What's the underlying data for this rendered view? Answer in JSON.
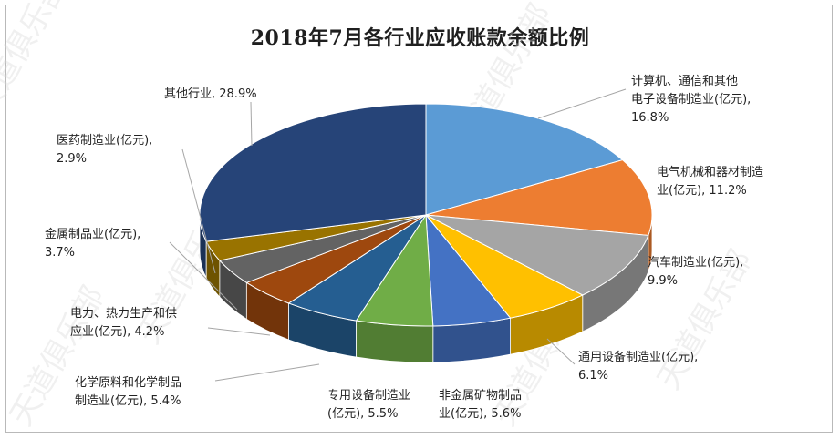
{
  "chart_data": {
    "type": "pie",
    "title": "2018年7月各行业应收账款余额比例",
    "slices": [
      {
        "label": "计算机、通信和其他电子设备制造业(亿元)",
        "value": 16.8,
        "color": "#5b9bd5",
        "label_lines": [
          "计算机、通信和其他",
          "电子设备制造业(亿元),",
          "16.8%"
        ]
      },
      {
        "label": "电气机械和器材制造业(亿元)",
        "value": 11.2,
        "color": "#ed7d31",
        "label_lines": [
          "电气机械和器材制造",
          "业(亿元), 11.2%"
        ]
      },
      {
        "label": "汽车制造业(亿元)",
        "value": 9.9,
        "color": "#a5a5a5",
        "label_lines": [
          "汽车制造业(亿元),",
          "9.9%"
        ]
      },
      {
        "label": "通用设备制造业(亿元)",
        "value": 6.1,
        "color": "#ffc000",
        "label_lines": [
          "通用设备制造业(亿元),",
          "6.1%"
        ]
      },
      {
        "label": "非金属矿物制品业(亿元)",
        "value": 5.6,
        "color": "#4472c4",
        "label_lines": [
          "非金属矿物制品",
          "业(亿元), 5.6%"
        ]
      },
      {
        "label": "专用设备制造业(亿元)",
        "value": 5.5,
        "color": "#70ad47",
        "label_lines": [
          "专用设备制造业",
          "(亿元), 5.5%"
        ]
      },
      {
        "label": "化学原料和化学制品制造业(亿元)",
        "value": 5.4,
        "color": "#255e91",
        "label_lines": [
          "化学原料和化学制品",
          "制造业(亿元), 5.4%"
        ]
      },
      {
        "label": "电力、热力生产和供应业(亿元)",
        "value": 4.2,
        "color": "#9e480e",
        "label_lines": [
          "电力、热力生产和供",
          "应业(亿元), 4.2%"
        ]
      },
      {
        "label": "金属制品业(亿元)",
        "value": 3.7,
        "color": "#636363",
        "label_lines": [
          "金属制品业(亿元),",
          "3.7%"
        ]
      },
      {
        "label": "医药制造业(亿元)",
        "value": 2.9,
        "color": "#997300",
        "label_lines": [
          "医药制造业(亿元),",
          "2.9%"
        ]
      },
      {
        "label": "其他行业",
        "value": 28.9,
        "color": "#264478",
        "label_lines": [
          "其他行业, 28.9%"
        ]
      }
    ],
    "legend": "none",
    "style": "3d-pie",
    "unit": "%"
  },
  "watermark": "天道俱乐部"
}
